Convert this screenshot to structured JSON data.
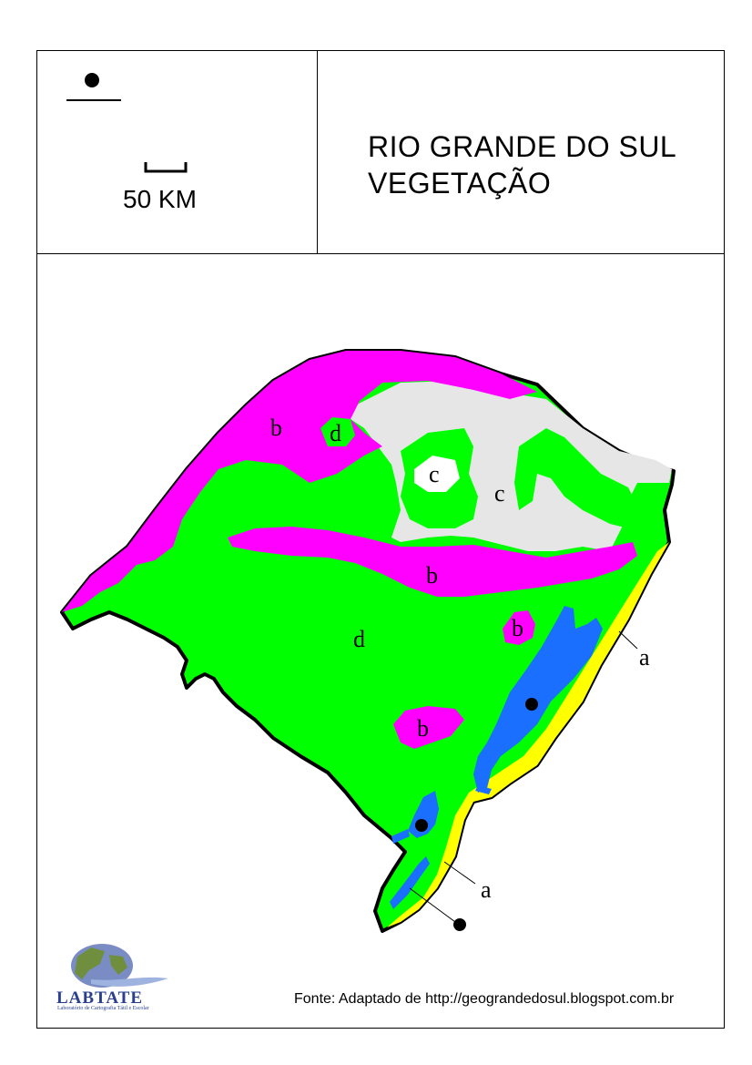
{
  "header": {
    "title_line1": "RIO GRANDE DO SUL",
    "title_line2": "VEGETAÇÃO",
    "scale_label": "50 KM"
  },
  "map_labels": {
    "a": "a",
    "b": "b",
    "c": "c",
    "d": "d"
  },
  "colors": {
    "a_coastal": "#ffff00",
    "b_magenta": "#ff00ff",
    "c_grey": "#e6e6e6",
    "d_green": "#00ff00",
    "water_blue": "#1a6fff",
    "outline": "#000000"
  },
  "footer": {
    "source": "Fonte: Adaptado de http://geograndedosul.blogspot.com.br",
    "logo_name": "LABTATE",
    "logo_subtitle": "Laboratório de Cartografia Tátil e Escolar"
  }
}
